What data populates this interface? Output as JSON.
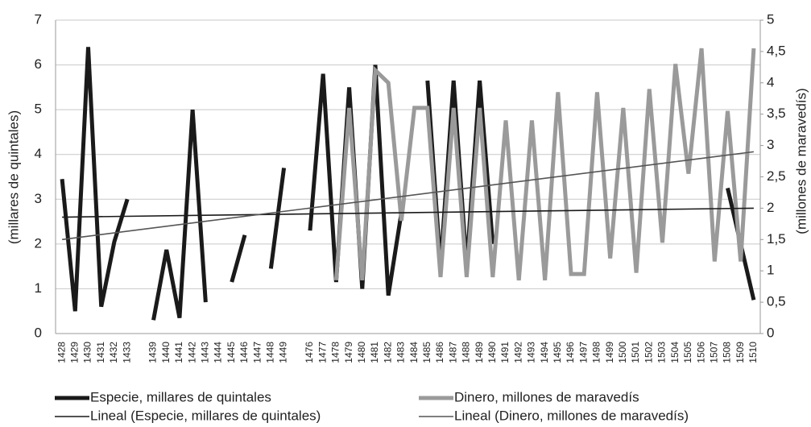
{
  "chart_data": {
    "type": "line",
    "y_label": "(millares de quintales)",
    "y2_label": "(millones de maravedís)",
    "categories": [
      "1428",
      "1429",
      "1430",
      "1431",
      "1432",
      "1433",
      null,
      "1439",
      "1440",
      "1441",
      "1442",
      "1443",
      "1444",
      "1445",
      "1446",
      "1447",
      "1448",
      "1449",
      null,
      "1476",
      "1477",
      "1478",
      "1479",
      "1480",
      "1481",
      "1482",
      "1483",
      "1484",
      "1485",
      "1486",
      "1487",
      "1488",
      "1489",
      "1490",
      "1491",
      "1492",
      "1493",
      "1494",
      "1495",
      "1496",
      "1497",
      "1498",
      "1499",
      "1500",
      "1501",
      "1502",
      "1503",
      "1504",
      "1505",
      "1506",
      "1507",
      "1508",
      "1509",
      "1510"
    ],
    "series": [
      {
        "name": "Especie, millares de quintales",
        "color": "#1a1a1a",
        "axis": "y",
        "values": [
          3.45,
          0.5,
          6.4,
          0.6,
          2.05,
          3.0,
          null,
          0.3,
          1.87,
          0.35,
          5.0,
          0.7,
          null,
          1.15,
          2.2,
          null,
          1.45,
          3.7,
          null,
          2.3,
          5.8,
          1.15,
          5.5,
          1.0,
          6.0,
          0.85,
          2.7,
          null,
          5.65,
          1.5,
          5.65,
          1.5,
          5.65,
          2.0,
          null,
          null,
          null,
          null,
          null,
          null,
          null,
          null,
          null,
          null,
          null,
          null,
          null,
          null,
          null,
          null,
          null,
          3.25,
          2.0,
          0.75
        ]
      },
      {
        "name": "Dinero, millones de maravedís",
        "color": "#9a9a9a",
        "axis": "y2",
        "values": [
          null,
          null,
          null,
          null,
          null,
          null,
          null,
          null,
          null,
          null,
          null,
          null,
          null,
          null,
          null,
          null,
          null,
          null,
          null,
          null,
          null,
          0.85,
          3.6,
          0.85,
          4.2,
          4.0,
          1.8,
          3.6,
          3.6,
          0.9,
          3.6,
          0.9,
          3.6,
          0.9,
          3.4,
          0.85,
          3.4,
          0.85,
          3.85,
          0.95,
          0.95,
          3.85,
          1.2,
          3.6,
          0.97,
          3.9,
          1.45,
          4.3,
          2.55,
          4.55,
          1.15,
          3.55,
          1.15,
          4.55
        ]
      }
    ],
    "trendlines": [
      {
        "name": "Lineal (Especie, millares de quintales)",
        "color": "#1a1a1a",
        "axis": "y",
        "values": [
          2.6,
          2.8
        ]
      },
      {
        "name": "Lineal (Dinero, millones de maravedís)",
        "color": "#555555",
        "axis": "y2",
        "values": [
          1.5,
          2.9
        ]
      }
    ],
    "ylim": [
      0,
      7
    ],
    "yticks": [
      0,
      1,
      2,
      3,
      4,
      5,
      6,
      7
    ],
    "y2lim": [
      0,
      5
    ],
    "y2ticks": [
      0,
      {
        "value": 0.5,
        "label": "0,5"
      },
      1,
      {
        "value": 1.5,
        "label": "1,5"
      },
      2,
      {
        "value": 2.5,
        "label": "2,5"
      },
      3,
      {
        "value": 3.5,
        "label": "3,5"
      },
      4,
      {
        "value": 4.5,
        "label": "4,5"
      },
      5
    ],
    "grid": true
  }
}
